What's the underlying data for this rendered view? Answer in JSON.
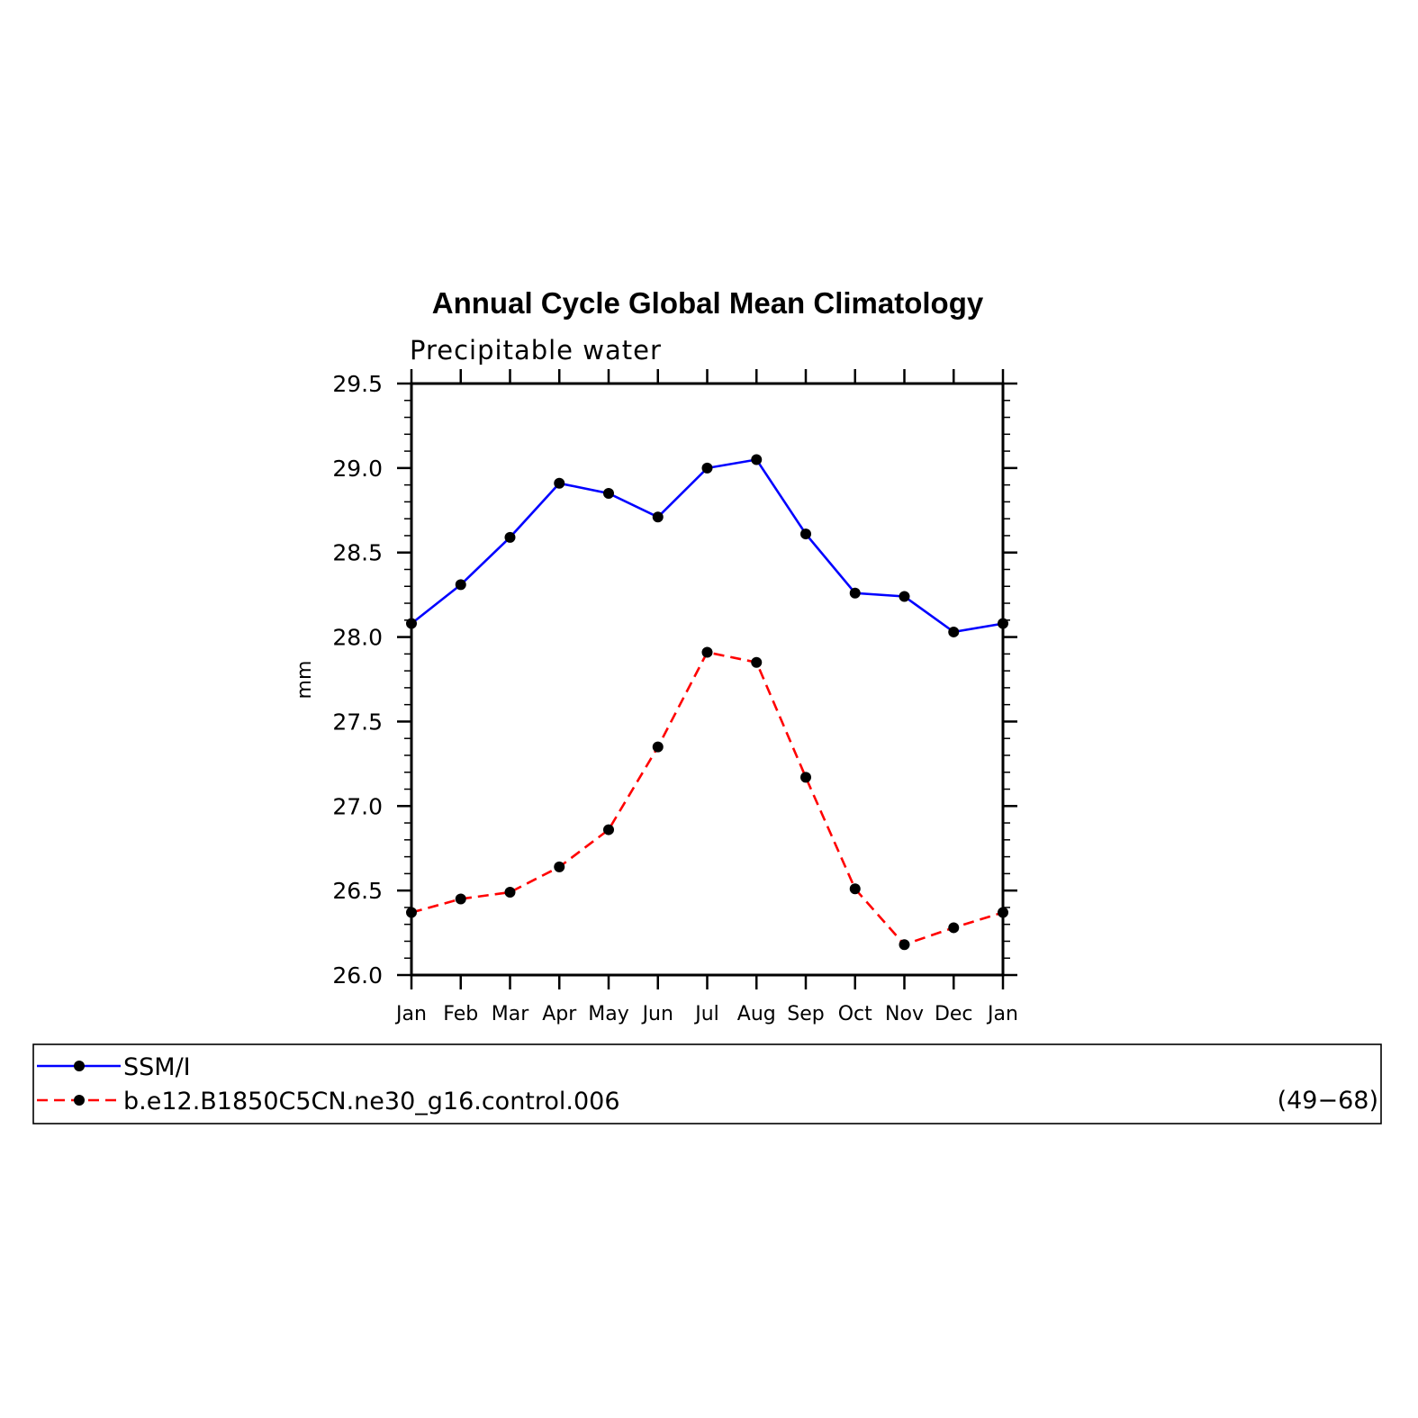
{
  "chart_data": {
    "type": "line",
    "title": "Annual Cycle Global Mean Climatology",
    "subtitle": "Precipitable water",
    "xlabel": "",
    "ylabel": "mm",
    "categories": [
      "Jan",
      "Feb",
      "Mar",
      "Apr",
      "May",
      "Jun",
      "Jul",
      "Aug",
      "Sep",
      "Oct",
      "Nov",
      "Dec",
      "Jan"
    ],
    "ylim": [
      26.0,
      29.5
    ],
    "yticks": [
      "29.5",
      "29.0",
      "28.5",
      "28.0",
      "27.5",
      "27.0",
      "26.5",
      "26.0"
    ],
    "grid": false,
    "legend_placement": "bottom",
    "series": [
      {
        "name": "SSM/I",
        "color": "#0000ff",
        "dash": "solid",
        "values": [
          28.08,
          28.31,
          28.59,
          28.91,
          28.85,
          28.71,
          29.0,
          29.05,
          28.61,
          28.26,
          28.24,
          28.03,
          28.08
        ]
      },
      {
        "name": "b.e12.B1850C5CN.ne30_g16.control.006",
        "color": "#ff0000",
        "dash": "dashed",
        "values": [
          26.37,
          26.45,
          26.49,
          26.64,
          26.86,
          27.35,
          27.91,
          27.85,
          27.17,
          26.51,
          26.18,
          26.28,
          26.37
        ]
      }
    ],
    "legend_note": "(49−68)"
  }
}
